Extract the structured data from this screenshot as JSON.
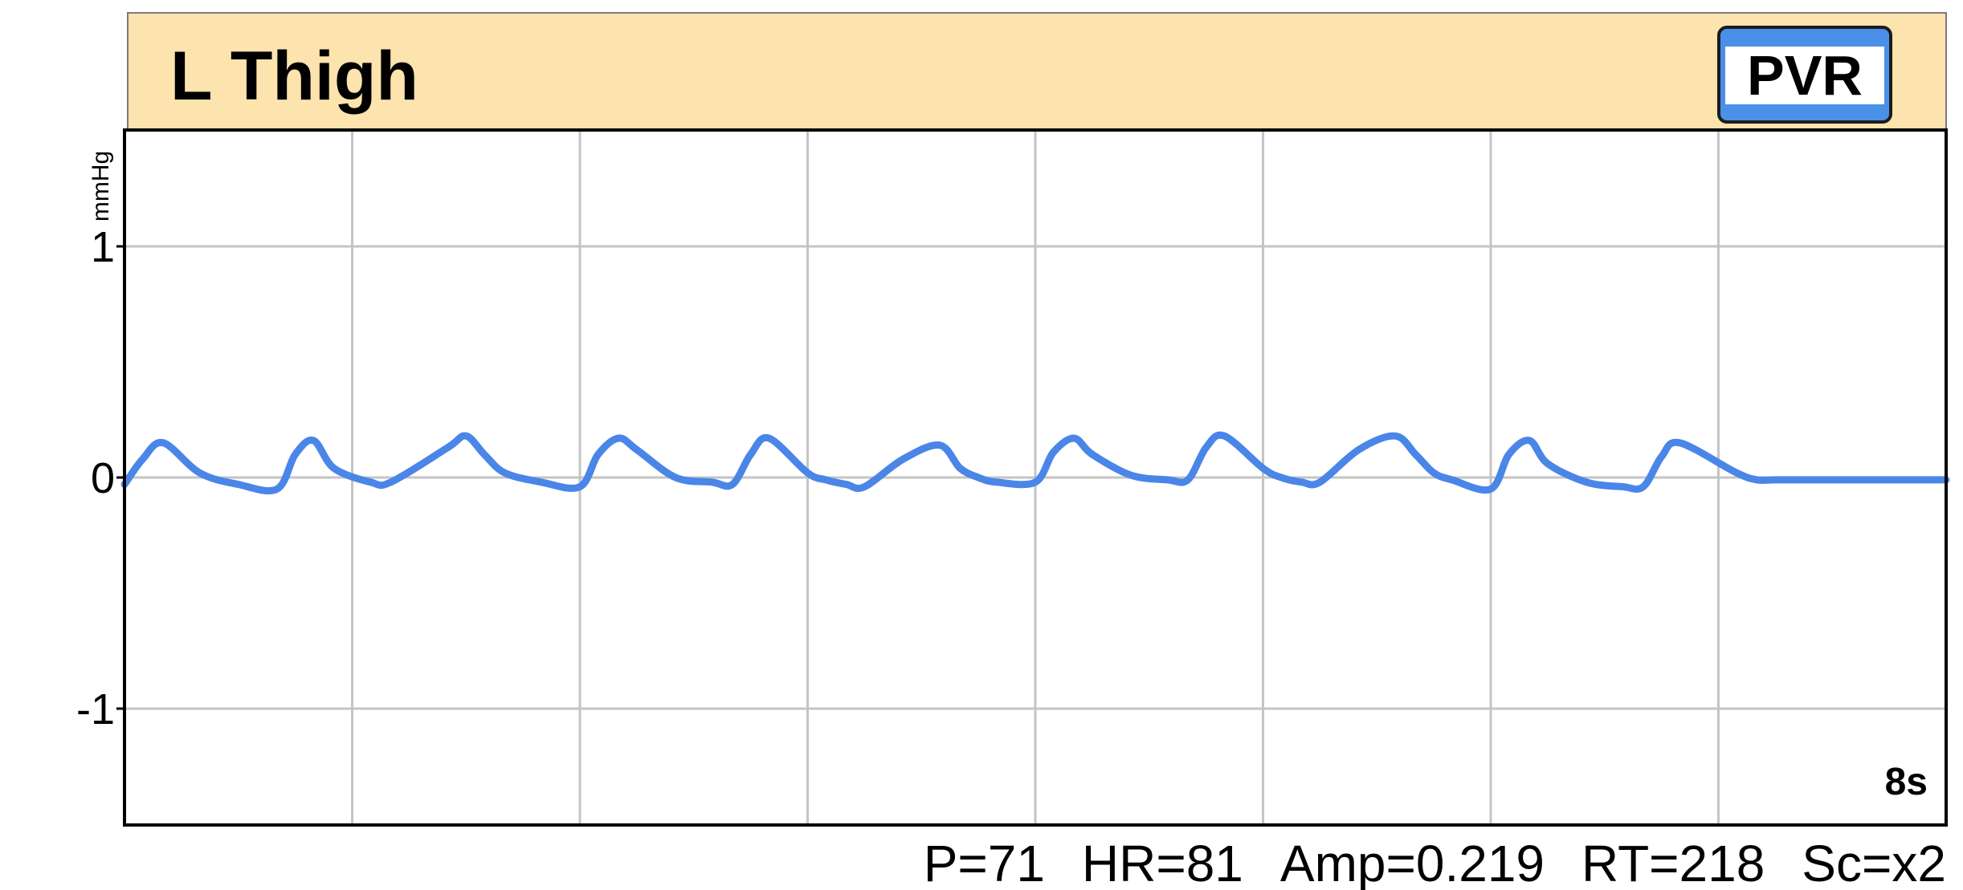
{
  "panel": {
    "title": "L Thigh",
    "badge": "PVR",
    "header_color": "#FDE3AD",
    "badge_accent_color": "#4A8FE8"
  },
  "chart_data": {
    "type": "line",
    "title": "L Thigh",
    "ylabel": "mmHg",
    "ylim": [
      -1.5,
      1.5
    ],
    "y_ticks": [
      1,
      0,
      -1
    ],
    "y_tick_labels": [
      "1",
      "0",
      "-1"
    ],
    "x_range_seconds": [
      0,
      8
    ],
    "x_grid_seconds": [
      1,
      2,
      3,
      4,
      5,
      6,
      7
    ],
    "duration_label": "8s",
    "grid": true,
    "series": [
      {
        "color": "#4A86E8",
        "x": [
          0,
          0.08,
          0.17,
          0.33,
          0.5,
          0.67,
          0.75,
          0.83,
          0.92,
          1.08,
          1.17,
          1.42,
          1.5,
          1.58,
          1.67,
          1.83,
          2.0,
          2.08,
          2.17,
          2.25,
          2.42,
          2.58,
          2.67,
          2.75,
          2.83,
          3.0,
          3.08,
          3.17,
          3.25,
          3.42,
          3.58,
          3.67,
          3.75,
          3.83,
          4.0,
          4.08,
          4.17,
          4.25,
          4.42,
          4.58,
          4.67,
          4.75,
          4.83,
          5.0,
          5.08,
          5.17,
          5.25,
          5.42,
          5.58,
          5.67,
          5.75,
          5.83,
          6.0,
          6.08,
          6.17,
          6.25,
          6.42,
          6.58,
          6.67,
          6.75,
          6.83,
          7.08,
          7.17,
          7.25,
          7.42,
          7.58,
          7.67,
          7.75,
          7.83,
          8.0
        ],
        "y": [
          -0.03,
          0.08,
          0.15,
          0.02,
          -0.03,
          -0.05,
          0.1,
          0.16,
          0.04,
          -0.02,
          -0.02,
          0.13,
          0.18,
          0.1,
          0.02,
          -0.02,
          -0.04,
          0.1,
          0.17,
          0.12,
          0.0,
          -0.02,
          -0.03,
          0.1,
          0.17,
          0.02,
          -0.01,
          -0.03,
          -0.04,
          0.08,
          0.14,
          0.04,
          0.0,
          -0.02,
          -0.02,
          0.11,
          0.17,
          0.1,
          0.01,
          -0.01,
          -0.01,
          0.13,
          0.18,
          0.04,
          0.0,
          -0.02,
          -0.02,
          0.12,
          0.18,
          0.1,
          0.02,
          -0.01,
          -0.05,
          0.1,
          0.16,
          0.06,
          -0.02,
          -0.04,
          -0.04,
          0.09,
          0.15,
          0.02,
          -0.01,
          -0.01,
          -0.01,
          -0.01,
          -0.01,
          -0.01,
          -0.01,
          -0.01
        ]
      }
    ]
  },
  "stats": [
    {
      "label": "P=71"
    },
    {
      "label": "HR=81"
    },
    {
      "label": "Amp=0.219"
    },
    {
      "label": "RT=218"
    },
    {
      "label": "Sc=x2"
    }
  ]
}
